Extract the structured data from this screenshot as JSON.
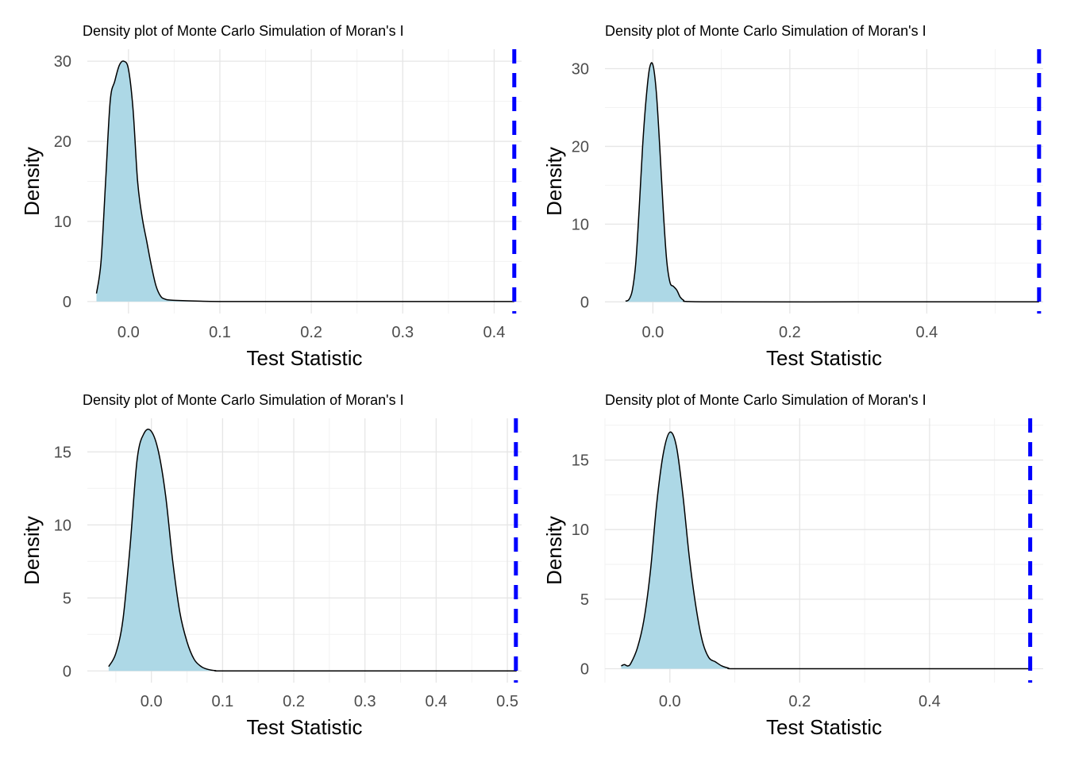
{
  "chart_data": [
    {
      "type": "area",
      "title": "Density plot of Monte Carlo Simulation of Moran's I",
      "xlabel": "Test Statistic",
      "ylabel": "Density",
      "xlim": [
        -0.045,
        0.43
      ],
      "ylim": [
        -1.5,
        31.5
      ],
      "xticks": [
        0.0,
        0.1,
        0.2,
        0.3,
        0.4
      ],
      "xtick_labels": [
        "0.0",
        "0.1",
        "0.2",
        "0.3",
        "0.4"
      ],
      "yticks": [
        0,
        10,
        20,
        30
      ],
      "ytick_labels": [
        "0",
        "10",
        "20",
        "30"
      ],
      "grid": true,
      "fill_color": "#add8e6",
      "line_color": "#000000",
      "observed_line": {
        "x": 0.422,
        "color": "#0000ff",
        "style": "dashed"
      },
      "x": [
        -0.035,
        -0.03,
        -0.025,
        -0.02,
        -0.015,
        -0.01,
        -0.005,
        0.0,
        0.005,
        0.01,
        0.015,
        0.02,
        0.025,
        0.03,
        0.035,
        0.04,
        0.05,
        0.1,
        0.2,
        0.3,
        0.4,
        0.422
      ],
      "y": [
        1.0,
        5.0,
        15.0,
        25.0,
        27.5,
        29.5,
        30.0,
        29.0,
        24.0,
        15.0,
        10.5,
        7.5,
        4.5,
        2.0,
        0.7,
        0.3,
        0.15,
        0.0,
        0.0,
        0.0,
        0.0,
        0.0
      ]
    },
    {
      "type": "area",
      "title": "Density plot of Monte Carlo Simulation of Moran's I",
      "xlabel": "Test Statistic",
      "ylabel": "Density",
      "xlim": [
        -0.07,
        0.57
      ],
      "ylim": [
        -1.5,
        32.5
      ],
      "xticks": [
        0.0,
        0.2,
        0.4
      ],
      "xtick_labels": [
        "0.0",
        "0.2",
        "0.4"
      ],
      "yticks": [
        0,
        10,
        20,
        30
      ],
      "ytick_labels": [
        "0",
        "10",
        "20",
        "30"
      ],
      "grid": true,
      "fill_color": "#add8e6",
      "line_color": "#000000",
      "observed_line": {
        "x": 0.564,
        "color": "#0000ff",
        "style": "dashed"
      },
      "x": [
        -0.04,
        -0.035,
        -0.03,
        -0.025,
        -0.02,
        -0.015,
        -0.01,
        -0.005,
        0.0,
        0.005,
        0.01,
        0.015,
        0.02,
        0.025,
        0.03,
        0.035,
        0.04,
        0.045,
        0.05,
        0.1,
        0.3,
        0.5,
        0.564
      ],
      "y": [
        0.1,
        0.3,
        1.5,
        5.0,
        12.0,
        20.0,
        26.0,
        30.0,
        30.5,
        27.0,
        20.0,
        12.0,
        5.5,
        2.5,
        2.0,
        1.5,
        0.6,
        0.2,
        0.05,
        0.0,
        0.0,
        0.0,
        0.0
      ]
    },
    {
      "type": "area",
      "title": "Density plot of Monte Carlo Simulation of Moran's I",
      "xlabel": "Test Statistic",
      "ylabel": "Density",
      "xlim": [
        -0.09,
        0.52
      ],
      "ylim": [
        -0.8,
        17.3
      ],
      "xticks": [
        0.0,
        0.1,
        0.2,
        0.3,
        0.4,
        0.5
      ],
      "xtick_labels": [
        "0.0",
        "0.1",
        "0.2",
        "0.3",
        "0.4",
        "0.5"
      ],
      "yticks": [
        0,
        5,
        10,
        15
      ],
      "ytick_labels": [
        "0",
        "5",
        "10",
        "15"
      ],
      "grid": true,
      "fill_color": "#add8e6",
      "line_color": "#000000",
      "observed_line": {
        "x": 0.512,
        "color": "#0000ff",
        "style": "dashed"
      },
      "x": [
        -0.06,
        -0.05,
        -0.04,
        -0.03,
        -0.02,
        -0.01,
        0.0,
        0.01,
        0.02,
        0.03,
        0.04,
        0.05,
        0.06,
        0.07,
        0.08,
        0.09,
        0.1,
        0.2,
        0.3,
        0.4,
        0.5,
        0.512
      ],
      "y": [
        0.3,
        1.2,
        3.5,
        8.5,
        14.5,
        16.3,
        16.4,
        15.0,
        12.0,
        7.5,
        4.0,
        2.0,
        0.8,
        0.3,
        0.1,
        0.02,
        0.0,
        0.0,
        0.0,
        0.0,
        0.0,
        0.0
      ]
    },
    {
      "type": "area",
      "title": "Density plot of Monte Carlo Simulation of Moran's I",
      "xlabel": "Test Statistic",
      "ylabel": "Density",
      "xlim": [
        -0.1,
        0.575
      ],
      "ylim": [
        -1.0,
        18.0
      ],
      "xticks": [
        0.0,
        0.2,
        0.4
      ],
      "xtick_labels": [
        "0.0",
        "0.2",
        "0.4"
      ],
      "yticks": [
        0,
        5,
        10,
        15
      ],
      "ytick_labels": [
        "0",
        "5",
        "10",
        "15"
      ],
      "grid": true,
      "fill_color": "#add8e6",
      "line_color": "#000000",
      "observed_line": {
        "x": 0.555,
        "color": "#0000ff",
        "style": "dashed"
      },
      "x": [
        -0.075,
        -0.07,
        -0.065,
        -0.06,
        -0.05,
        -0.04,
        -0.03,
        -0.02,
        -0.01,
        0.0,
        0.01,
        0.02,
        0.03,
        0.04,
        0.05,
        0.06,
        0.07,
        0.08,
        0.09,
        0.1,
        0.2,
        0.4,
        0.555
      ],
      "y": [
        0.2,
        0.3,
        0.2,
        0.4,
        1.5,
        3.5,
        7.0,
        12.0,
        15.5,
        17.0,
        16.0,
        12.5,
        8.0,
        4.5,
        2.0,
        0.8,
        0.5,
        0.2,
        0.05,
        0.0,
        0.0,
        0.0,
        0.0
      ]
    }
  ]
}
